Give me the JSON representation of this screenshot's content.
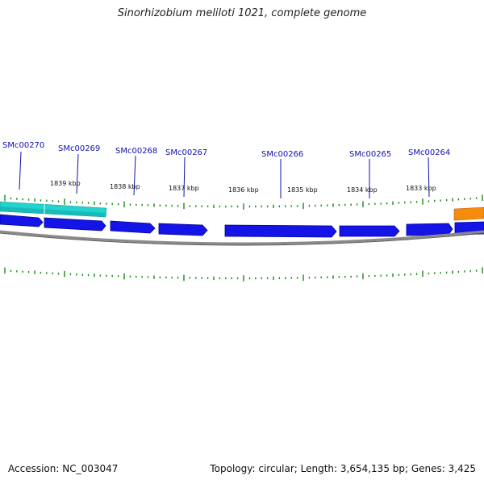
{
  "title": "Sinorhizobium meliloti 1021, complete genome",
  "footer": {
    "accession": "Accession: NC_003047",
    "summary": "Topology: circular; Length: 3,654,135 bp; Genes: 3,425"
  },
  "colors": {
    "gene_fill": "#1414e6",
    "gene_edge": "#0000a0",
    "cyan_feature": "#22d3d0",
    "orange_feature": "#f58c10",
    "tick": "#1a8a1a",
    "backbone": "#8a8a8a",
    "label": "#1010b0"
  },
  "gene_labels": [
    {
      "id": "g270",
      "text": "SMc00270"
    },
    {
      "id": "g269",
      "text": "SMc00269"
    },
    {
      "id": "g268",
      "text": "SMc00268"
    },
    {
      "id": "g267",
      "text": "SMc00267"
    },
    {
      "id": "g266",
      "text": "SMc00266"
    },
    {
      "id": "g265",
      "text": "SMc00265"
    },
    {
      "id": "g264",
      "text": "SMc00264"
    }
  ],
  "kbp_labels": [
    {
      "id": "k1839",
      "text": "1839 kbp"
    },
    {
      "id": "k1838",
      "text": "1838 kbp"
    },
    {
      "id": "k1837",
      "text": "1837 kbp"
    },
    {
      "id": "k1836",
      "text": "1836 kbp"
    },
    {
      "id": "k1835",
      "text": "1835 kbp"
    },
    {
      "id": "k1834",
      "text": "1834 kbp"
    },
    {
      "id": "k1833",
      "text": "1833 kbp"
    }
  ]
}
